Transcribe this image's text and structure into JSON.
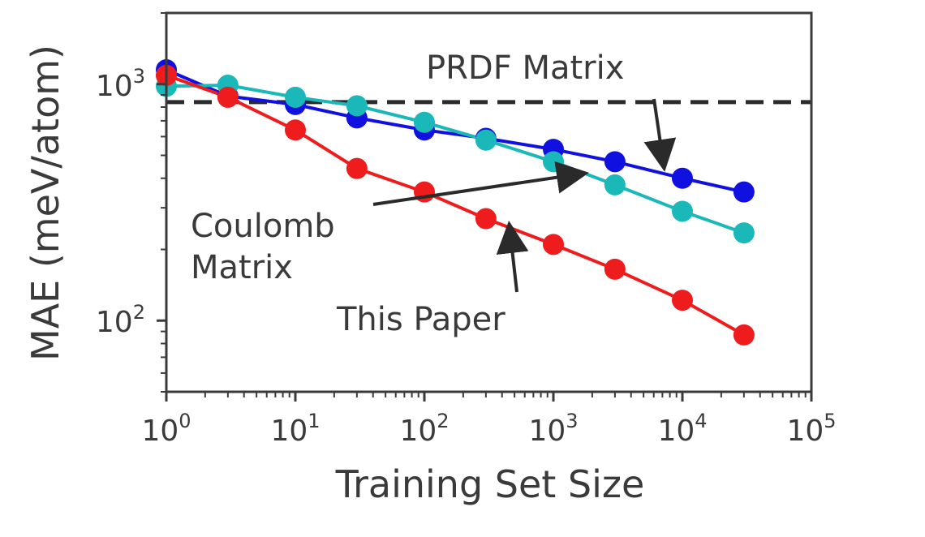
{
  "chart_data": {
    "type": "line",
    "xlabel": "Training Set Size",
    "ylabel": "MAE (meV/atom)",
    "xscale": "log",
    "yscale": "log",
    "xlim": [
      1,
      100000
    ],
    "ylim": [
      50,
      2000
    ],
    "x_ticks": [
      {
        "value": 1,
        "base": "10",
        "exp": "0"
      },
      {
        "value": 10,
        "base": "10",
        "exp": "1"
      },
      {
        "value": 100,
        "base": "10",
        "exp": "2"
      },
      {
        "value": 1000,
        "base": "10",
        "exp": "3"
      },
      {
        "value": 10000,
        "base": "10",
        "exp": "4"
      },
      {
        "value": 100000,
        "base": "10",
        "exp": "5"
      }
    ],
    "y_ticks": [
      {
        "value": 100,
        "base": "10",
        "exp": "2"
      },
      {
        "value": 1000,
        "base": "10",
        "exp": "3"
      }
    ],
    "x": [
      1,
      3,
      10,
      30,
      100,
      300,
      1000,
      3000,
      10000,
      30000
    ],
    "series": [
      {
        "key": "blue",
        "color": "#1010e0",
        "values": [
          1150,
          890,
          820,
          720,
          640,
          590,
          530,
          470,
          400,
          350
        ]
      },
      {
        "key": "cyan",
        "color": "#1ab8b8",
        "values": [
          980,
          990,
          880,
          810,
          690,
          580,
          470,
          375,
          290,
          235
        ]
      },
      {
        "key": "red",
        "color": "#ee1c1c",
        "values": [
          1090,
          880,
          640,
          440,
          350,
          270,
          210,
          165,
          122,
          87
        ]
      }
    ],
    "reference_line": {
      "value": 840,
      "style": "dashed",
      "color": "#2a2a2a"
    },
    "annotations": [
      {
        "key": "prdf",
        "lines": [
          "PRDF Matrix"
        ]
      },
      {
        "key": "coulomb",
        "lines": [
          "Coulomb",
          "Matrix"
        ]
      },
      {
        "key": "paper",
        "lines": [
          "This Paper"
        ]
      }
    ]
  }
}
